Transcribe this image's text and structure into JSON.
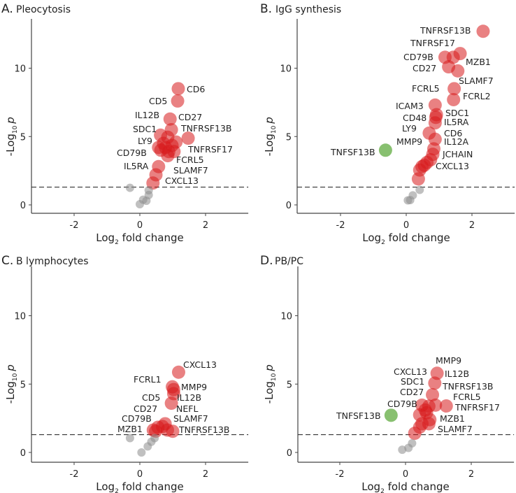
{
  "colors": {
    "up": "#d7191c",
    "ns": "#8c8c8c",
    "down": "#6ab04c",
    "axis": "#444444"
  },
  "chart_data": [
    {
      "type": "scatter",
      "letter": "A.",
      "title": "Pleocytosis",
      "xlabel": {
        "main": "Log",
        "sub": "2",
        "rest": " fold change"
      },
      "ylabel": {
        "main": "-Log",
        "sub": "10",
        "rest": "p"
      },
      "xlim": [
        -3.3,
        3.3
      ],
      "ylim": [
        -0.6,
        13.5
      ],
      "xticks": [
        "-2",
        "0",
        "2"
      ],
      "xtick_values": [
        -2,
        0,
        2
      ],
      "yticks": [
        "0",
        "5",
        "10"
      ],
      "ytick_values": [
        0,
        5,
        10
      ],
      "threshold": 1.3,
      "points": [
        {
          "x": 1.17,
          "y": 8.5,
          "g": "up"
        },
        {
          "x": 1.15,
          "y": 7.6,
          "g": "up"
        },
        {
          "x": 0.92,
          "y": 6.28,
          "g": "up"
        },
        {
          "x": 0.96,
          "y": 5.5,
          "g": "up"
        },
        {
          "x": 1.47,
          "y": 4.88,
          "g": "up"
        },
        {
          "x": 0.63,
          "y": 5.1,
          "g": "up"
        },
        {
          "x": 0.85,
          "y": 4.95,
          "g": "up"
        },
        {
          "x": 0.72,
          "y": 4.5,
          "g": "up"
        },
        {
          "x": 1.1,
          "y": 4.6,
          "g": "up"
        },
        {
          "x": 0.57,
          "y": 4.2,
          "g": "up"
        },
        {
          "x": 0.78,
          "y": 4.2,
          "g": "up"
        },
        {
          "x": 0.98,
          "y": 4.35,
          "g": "up"
        },
        {
          "x": 0.88,
          "y": 3.9,
          "g": "up"
        },
        {
          "x": 0.85,
          "y": 3.6,
          "g": "up"
        },
        {
          "x": 1.04,
          "y": 3.9,
          "g": "up"
        },
        {
          "x": 0.64,
          "y": 4.0,
          "g": "up"
        },
        {
          "x": 0.57,
          "y": 2.8,
          "g": "up"
        },
        {
          "x": 0.49,
          "y": 2.2,
          "g": "up"
        },
        {
          "x": 0.4,
          "y": 1.6,
          "g": "up"
        },
        {
          "x": -0.3,
          "y": 1.25,
          "g": "ns"
        },
        {
          "x": 0.27,
          "y": 1.07,
          "g": "ns"
        },
        {
          "x": 0.27,
          "y": 0.72,
          "g": "ns"
        },
        {
          "x": 0.1,
          "y": 0.38,
          "g": "ns"
        },
        {
          "x": 0.2,
          "y": 0.3,
          "g": "ns"
        },
        {
          "x": 0.0,
          "y": 0.05,
          "g": "ns"
        }
      ],
      "labels": [
        "CD6",
        "CD5",
        "IL12B",
        "CD27",
        "SDC1",
        "TNFRSF13B",
        "LY9",
        "CD79B",
        "TNFRSF17",
        "FCRL5",
        "IL5RA",
        "SLAMF7",
        "CXCL13"
      ]
    },
    {
      "type": "scatter",
      "letter": "B.",
      "title": "IgG synthesis",
      "xlabel": {
        "main": "Log",
        "sub": "2",
        "rest": " fold change"
      },
      "ylabel": {
        "main": "-Log",
        "sub": "10",
        "rest": "p"
      },
      "xlim": [
        -3.3,
        3.3
      ],
      "ylim": [
        -0.6,
        13.5
      ],
      "xticks": [
        "-2",
        "0",
        "2"
      ],
      "xtick_values": [
        -2,
        0,
        2
      ],
      "yticks": [
        "0",
        "5",
        "10"
      ],
      "ytick_values": [
        0,
        5,
        10
      ],
      "threshold": 1.3,
      "points": [
        {
          "x": 2.34,
          "y": 12.7,
          "g": "up"
        },
        {
          "x": 1.64,
          "y": 11.07,
          "g": "up"
        },
        {
          "x": 1.43,
          "y": 10.8,
          "g": "up"
        },
        {
          "x": 1.18,
          "y": 10.8,
          "g": "up"
        },
        {
          "x": 1.29,
          "y": 10.1,
          "g": "up"
        },
        {
          "x": 1.57,
          "y": 9.8,
          "g": "up"
        },
        {
          "x": 1.46,
          "y": 8.5,
          "g": "up"
        },
        {
          "x": 1.44,
          "y": 7.7,
          "g": "up"
        },
        {
          "x": 0.88,
          "y": 7.3,
          "g": "up"
        },
        {
          "x": 0.92,
          "y": 6.6,
          "g": "up"
        },
        {
          "x": 0.9,
          "y": 6.4,
          "g": "up"
        },
        {
          "x": 0.88,
          "y": 6.0,
          "g": "up"
        },
        {
          "x": 0.7,
          "y": 5.25,
          "g": "up"
        },
        {
          "x": 0.88,
          "y": 4.8,
          "g": "up"
        },
        {
          "x": 0.84,
          "y": 4.1,
          "g": "up"
        },
        {
          "x": 0.81,
          "y": 3.7,
          "g": "up"
        },
        {
          "x": 0.74,
          "y": 3.3,
          "g": "up"
        },
        {
          "x": 0.63,
          "y": 3.1,
          "g": "up"
        },
        {
          "x": 0.55,
          "y": 2.9,
          "g": "up"
        },
        {
          "x": 0.48,
          "y": 2.8,
          "g": "up"
        },
        {
          "x": 0.41,
          "y": 2.55,
          "g": "up"
        },
        {
          "x": 0.37,
          "y": 1.9,
          "g": "up"
        },
        {
          "x": -0.63,
          "y": 4.0,
          "g": "down"
        },
        {
          "x": 0.41,
          "y": 1.1,
          "g": "ns"
        },
        {
          "x": 0.2,
          "y": 0.7,
          "g": "ns"
        },
        {
          "x": 0.12,
          "y": 0.35,
          "g": "ns"
        },
        {
          "x": 0.05,
          "y": 0.33,
          "g": "ns"
        }
      ],
      "labels": [
        "TNFRSF13B",
        "TNFRSF17",
        "CD79B",
        "MZB1",
        "CD27",
        "SLAMF7",
        "FCRL5",
        "FCRL2",
        "ICAM3",
        "SDC1",
        "CD48",
        "IL5RA",
        "LY9",
        "CD6",
        "MMP9",
        "IL12A",
        "TNFSF13B",
        "JCHAIN",
        "CXCL13"
      ]
    },
    {
      "type": "scatter",
      "letter": "C.",
      "title": "B lymphocytes",
      "xlabel": {
        "main": "Log",
        "sub": "2",
        "rest": " fold change"
      },
      "ylabel": {
        "main": "-Log",
        "sub": "10",
        "rest": "p"
      },
      "xlim": [
        -3.3,
        3.3
      ],
      "ylim": [
        -0.6,
        13.5
      ],
      "xticks": [
        "-2",
        "0",
        "2"
      ],
      "xtick_values": [
        -2,
        0,
        2
      ],
      "yticks": [
        "0",
        "5",
        "10"
      ],
      "ytick_values": [
        0,
        5,
        10
      ],
      "threshold": 1.3,
      "points": [
        {
          "x": 1.18,
          "y": 5.87,
          "g": "up"
        },
        {
          "x": 0.99,
          "y": 4.8,
          "g": "up"
        },
        {
          "x": 1.03,
          "y": 4.6,
          "g": "up"
        },
        {
          "x": 1.03,
          "y": 4.3,
          "g": "up"
        },
        {
          "x": 0.96,
          "y": 3.6,
          "g": "up"
        },
        {
          "x": 0.77,
          "y": 2.1,
          "g": "up"
        },
        {
          "x": 0.69,
          "y": 1.9,
          "g": "up"
        },
        {
          "x": 0.55,
          "y": 1.84,
          "g": "up"
        },
        {
          "x": 0.41,
          "y": 1.64,
          "g": "up"
        },
        {
          "x": 0.48,
          "y": 1.55,
          "g": "up"
        },
        {
          "x": 1.0,
          "y": 1.55,
          "g": "up"
        },
        {
          "x": 0.84,
          "y": 1.64,
          "g": "up"
        },
        {
          "x": -0.3,
          "y": 1.05,
          "g": "ns"
        },
        {
          "x": 0.45,
          "y": 1.05,
          "g": "ns"
        },
        {
          "x": 0.35,
          "y": 0.78,
          "g": "ns"
        },
        {
          "x": 0.24,
          "y": 0.44,
          "g": "ns"
        },
        {
          "x": 0.05,
          "y": 0.0,
          "g": "ns"
        }
      ],
      "labels": [
        "CXCL13",
        "FCRL1",
        "MMP9",
        "CD5",
        "IL12B",
        "CD27",
        "NEFL",
        "CD79B",
        "SLAMF7",
        "MZB1",
        "TNFRSF13B"
      ]
    },
    {
      "type": "scatter",
      "letter": "D.",
      "title": "PB/PC",
      "xlabel": {
        "main": "Log",
        "sub": "2",
        "rest": " fold change"
      },
      "ylabel": {
        "main": "-Log",
        "sub": "10",
        "rest": "p"
      },
      "xlim": [
        -3.3,
        3.3
      ],
      "ylim": [
        -0.6,
        13.5
      ],
      "xticks": [
        "-2",
        "0",
        "2"
      ],
      "xtick_values": [
        -2,
        0,
        2
      ],
      "yticks": [
        "0",
        "5",
        "10"
      ],
      "ytick_values": [
        0,
        5,
        10
      ],
      "threshold": 1.3,
      "points": [
        {
          "x": 0.96,
          "y": 5.79,
          "g": "up"
        },
        {
          "x": 0.89,
          "y": 5.07,
          "g": "up"
        },
        {
          "x": 0.82,
          "y": 4.22,
          "g": "up"
        },
        {
          "x": 1.24,
          "y": 3.4,
          "g": "up"
        },
        {
          "x": 0.5,
          "y": 3.46,
          "g": "up"
        },
        {
          "x": 0.71,
          "y": 3.38,
          "g": "up"
        },
        {
          "x": 0.91,
          "y": 3.46,
          "g": "up"
        },
        {
          "x": 0.64,
          "y": 2.9,
          "g": "up"
        },
        {
          "x": 0.43,
          "y": 2.75,
          "g": "up"
        },
        {
          "x": 0.74,
          "y": 2.4,
          "g": "up"
        },
        {
          "x": 0.5,
          "y": 2.1,
          "g": "up"
        },
        {
          "x": 0.43,
          "y": 1.85,
          "g": "up"
        },
        {
          "x": 0.71,
          "y": 2.1,
          "g": "up"
        },
        {
          "x": 0.28,
          "y": 1.4,
          "g": "up"
        },
        {
          "x": 0.6,
          "y": 3.1,
          "g": "up"
        },
        {
          "x": -0.44,
          "y": 2.72,
          "g": "down"
        },
        {
          "x": 0.2,
          "y": 0.67,
          "g": "ns"
        },
        {
          "x": 0.09,
          "y": 0.33,
          "g": "ns"
        },
        {
          "x": -0.1,
          "y": 0.2,
          "g": "ns"
        }
      ],
      "labels": [
        "MMP9",
        "CXCL13",
        "IL12B",
        "SDC1",
        "TNFRSF13B",
        "CD27",
        "FCRL5",
        "CD79B",
        "TNFRSF17",
        "TNFSF13B",
        "MZB1",
        "SLAMF7"
      ]
    }
  ]
}
